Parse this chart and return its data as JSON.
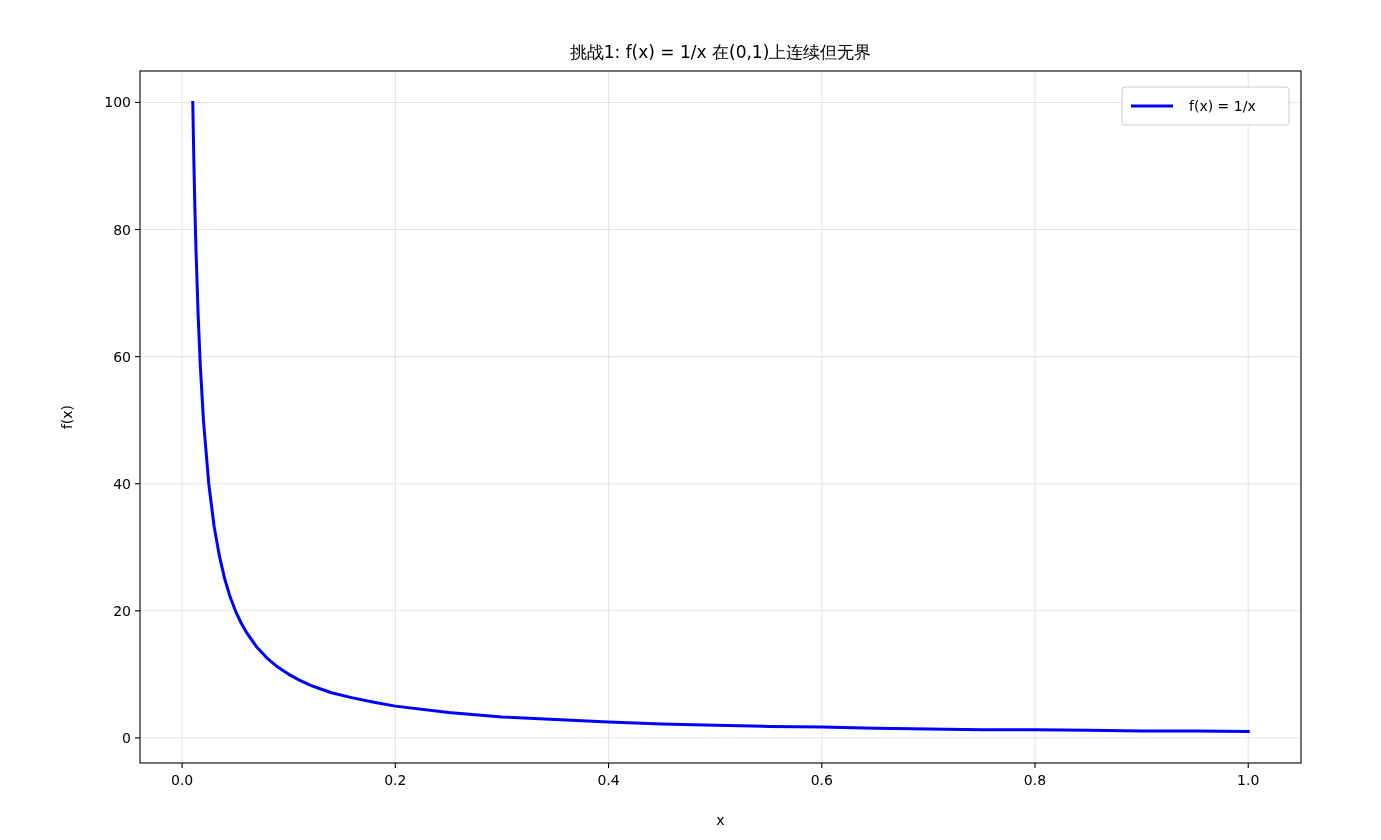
{
  "chart_data": {
    "type": "line",
    "title": "挑战1: f(x) = 1/x 在(0,1)上连续但无界",
    "xlabel": "x",
    "ylabel": "f(x)",
    "series": [
      {
        "name": "f(x) = 1/x",
        "color": "#0000ff",
        "line_style": "solid",
        "x": [
          0.01,
          0.011,
          0.012,
          0.013,
          0.015,
          0.017,
          0.02,
          0.025,
          0.03,
          0.035,
          0.04,
          0.045,
          0.05,
          0.055,
          0.06,
          0.07,
          0.08,
          0.09,
          0.1,
          0.11,
          0.12,
          0.13,
          0.14,
          0.16,
          0.18,
          0.2,
          0.25,
          0.3,
          0.35,
          0.4,
          0.45,
          0.5,
          0.55,
          0.6,
          0.65,
          0.7,
          0.75,
          0.8,
          0.85,
          0.9,
          0.95,
          1.0
        ],
        "values": [
          100,
          90.9,
          83.3,
          76.9,
          66.7,
          58.8,
          50,
          40,
          33.3,
          28.6,
          25,
          22.2,
          20,
          18.2,
          16.7,
          14.3,
          12.5,
          11.1,
          10,
          9.1,
          8.3,
          7.7,
          7.1,
          6.3,
          5.6,
          5,
          4,
          3.3,
          2.9,
          2.5,
          2.2,
          2,
          1.8,
          1.7,
          1.5,
          1.4,
          1.3,
          1.3,
          1.2,
          1.1,
          1.1,
          1
        ]
      }
    ],
    "xlim": [
      -0.0395,
      1.0495
    ],
    "ylim": [
      -3.95,
      104.95
    ],
    "xticks": [
      {
        "value": 0,
        "label": "0.0"
      },
      0.2,
      0.4,
      0.6,
      0.8,
      {
        "value": 1,
        "label": "1.0"
      }
    ],
    "yticks": [
      0,
      20,
      40,
      60,
      80,
      100
    ],
    "grid": true,
    "legend": "top right"
  }
}
